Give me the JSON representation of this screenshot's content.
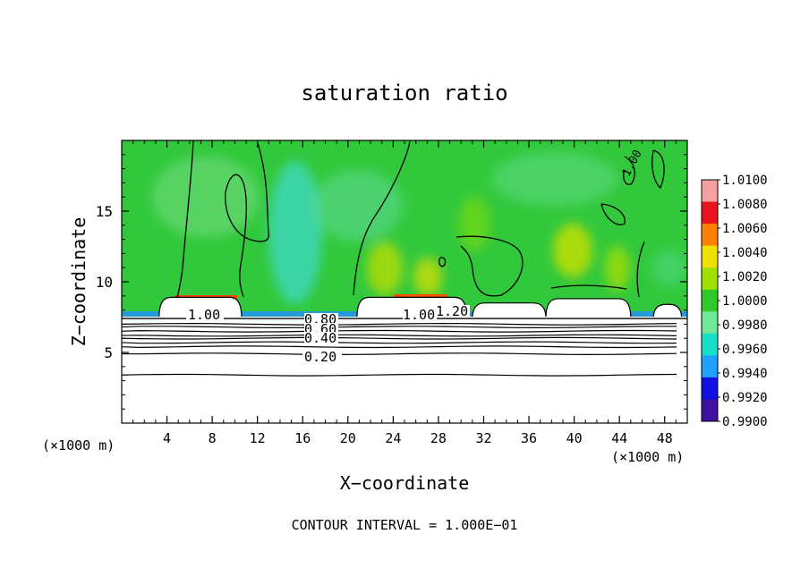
{
  "chart_data": {
    "type": "heatmap",
    "title": "saturation ratio",
    "xlabel": "X−coordinate",
    "ylabel": "Z−coordinate",
    "x_unit": "(×1000 m)",
    "y_unit": "(×1000 m)",
    "xlim": [
      0,
      50
    ],
    "ylim": [
      0,
      20
    ],
    "x_ticks": [
      "4",
      "8",
      "12",
      "16",
      "20",
      "24",
      "28",
      "32",
      "36",
      "40",
      "44",
      "48"
    ],
    "y_ticks": [
      "5",
      "10",
      "15"
    ],
    "contour_interval_text": "CONTOUR INTERVAL = 1.000E−01",
    "contour_labels": [
      "1.00",
      "0.80",
      "0.60",
      "0.40",
      "0.20",
      "1.00",
      "1.20",
      "1.00"
    ],
    "colorbar": {
      "labels": [
        "1.0100",
        "1.0080",
        "1.0060",
        "1.0040",
        "1.0020",
        "1.0000",
        "0.9980",
        "0.9960",
        "0.9940",
        "0.9920",
        "0.9900"
      ],
      "colors": [
        "#f4a0a0",
        "#e8141e",
        "#ff8000",
        "#f0e000",
        "#a0e000",
        "#30c82a",
        "#70e898",
        "#18e0c8",
        "#20a0ff",
        "#1010e0",
        "#4010a0"
      ]
    },
    "field": {
      "background_color": "#32c83c",
      "upper_color": "#4fd36a",
      "cloud_base_z": 7.4,
      "cloud_tops": [
        {
          "x0": 3.3,
          "x1": 10.6,
          "z": 8.9
        },
        {
          "x0": 20.8,
          "x1": 30.5,
          "z": 8.9
        },
        {
          "x0": 31.0,
          "x1": 37.5,
          "z": 8.5
        },
        {
          "x0": 37.5,
          "x1": 45.0,
          "z": 8.8
        },
        {
          "x0": 47.0,
          "x1": 49.5,
          "z": 8.4
        }
      ],
      "below_cloud_contours_z": [
        7.0,
        6.8,
        6.5,
        6.2,
        6.0,
        5.7,
        5.4,
        4.9,
        3.4
      ]
    }
  }
}
